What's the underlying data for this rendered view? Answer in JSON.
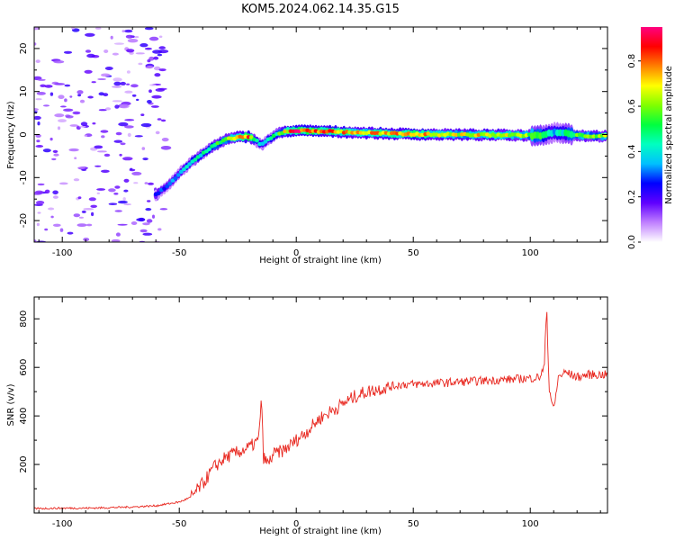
{
  "title": "KOM5.2024.062.14.35.G15",
  "chart_data": [
    {
      "type": "heatmap",
      "xlabel": "Height of straight line (km)",
      "ylabel": "Frequency (Hz)",
      "xlim": [
        -112,
        133
      ],
      "ylim": [
        -25,
        25
      ],
      "xticks": [
        -100,
        -50,
        0,
        50,
        100
      ],
      "xtick_labels": [
        "-100",
        "-50",
        "0",
        "50",
        "100"
      ],
      "yticks": [
        -20,
        -10,
        0,
        10,
        20
      ],
      "ytick_labels": [
        "-20",
        "-10",
        "0",
        "10",
        "20"
      ],
      "colorbar": {
        "label": "Normalized spectral amplitude",
        "range": [
          0,
          0.95
        ],
        "ticks": [
          0.0,
          0.2,
          0.4,
          0.6,
          0.8
        ],
        "tick_labels": [
          "0.0",
          "0.2",
          "0.4",
          "0.6",
          "0.8"
        ],
        "colormap": [
          "#ffffff",
          "#c080ff",
          "#6000ff",
          "#0000ff",
          "#00c0ff",
          "#00ffc0",
          "#00ff40",
          "#80ff00",
          "#ffff00",
          "#ff8000",
          "#ff0000",
          "#ff0080"
        ]
      },
      "ridge": {
        "x": [
          -60,
          -55,
          -50,
          -45,
          -40,
          -35,
          -30,
          -25,
          -20,
          -17,
          -15,
          -12,
          -8,
          -4,
          0,
          10,
          20,
          30,
          40,
          50,
          60,
          70,
          80,
          90,
          100,
          105,
          110,
          115,
          120,
          125,
          133
        ],
        "frequency": [
          -14,
          -12,
          -9,
          -6.5,
          -4.5,
          -2.5,
          -1.2,
          -0.6,
          -0.5,
          -1.5,
          -2.5,
          -1.2,
          0.2,
          0.8,
          0.9,
          0.8,
          0.6,
          0.4,
          0.2,
          0.1,
          0.0,
          0.0,
          -0.1,
          -0.1,
          -0.2,
          -0.2,
          0.5,
          0.3,
          -0.2,
          -0.3,
          -0.4
        ],
        "amplitude": [
          0.25,
          0.3,
          0.35,
          0.4,
          0.45,
          0.5,
          0.55,
          0.7,
          0.85,
          0.4,
          0.35,
          0.4,
          0.5,
          0.7,
          0.9,
          0.8,
          0.75,
          0.7,
          0.75,
          0.8,
          0.7,
          0.65,
          0.7,
          0.65,
          0.6,
          0.5,
          0.35,
          0.45,
          0.55,
          0.6,
          0.6
        ]
      },
      "noise_region": {
        "x_range": [
          -112,
          -55
        ],
        "amplitude": 0.1
      }
    },
    {
      "type": "line",
      "xlabel": "Height of straight line (km)",
      "ylabel": "SNR (v/v)",
      "xlim": [
        -112,
        133
      ],
      "ylim": [
        0,
        890
      ],
      "xticks": [
        -100,
        -50,
        0,
        50,
        100
      ],
      "xtick_labels": [
        "-100",
        "-50",
        "0",
        "50",
        "100"
      ],
      "yticks": [
        200,
        400,
        600,
        800
      ],
      "ytick_labels": [
        "200",
        "400",
        "600",
        "800"
      ],
      "series": [
        {
          "color": "#e8261e",
          "x": [
            -112,
            -100,
            -90,
            -80,
            -70,
            -60,
            -50,
            -45,
            -40,
            -35,
            -30,
            -25,
            -20,
            -16,
            -15,
            -14,
            -12,
            -10,
            -5,
            0,
            5,
            10,
            15,
            20,
            25,
            30,
            35,
            40,
            45,
            50,
            60,
            70,
            80,
            90,
            100,
            104,
            106,
            107,
            108,
            110,
            112,
            115,
            120,
            125,
            133
          ],
          "y": [
            18,
            20,
            20,
            22,
            25,
            30,
            45,
            65,
            120,
            190,
            230,
            250,
            270,
            300,
            480,
            230,
            200,
            240,
            260,
            300,
            340,
            390,
            420,
            450,
            480,
            500,
            510,
            520,
            530,
            530,
            535,
            540,
            545,
            550,
            555,
            560,
            600,
            860,
            520,
            420,
            560,
            580,
            560,
            570,
            570
          ]
        }
      ]
    }
  ]
}
